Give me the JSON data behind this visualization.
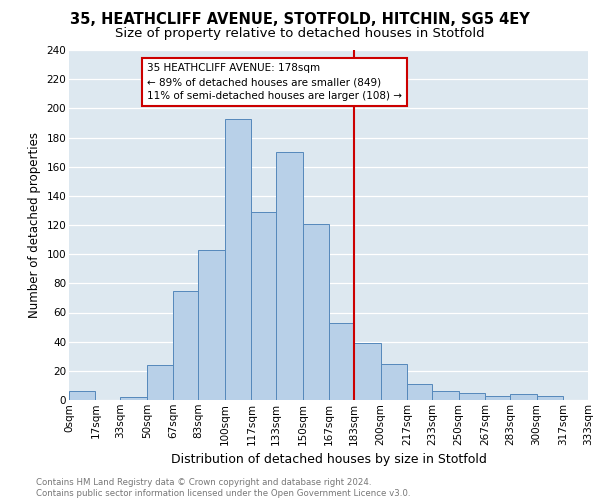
{
  "title1": "35, HEATHCLIFF AVENUE, STOTFOLD, HITCHIN, SG5 4EY",
  "title2": "Size of property relative to detached houses in Stotfold",
  "xlabel": "Distribution of detached houses by size in Stotfold",
  "ylabel": "Number of detached properties",
  "bin_labels": [
    "0sqm",
    "17sqm",
    "33sqm",
    "50sqm",
    "67sqm",
    "83sqm",
    "100sqm",
    "117sqm",
    "133sqm",
    "150sqm",
    "167sqm",
    "183sqm",
    "200sqm",
    "217sqm",
    "233sqm",
    "250sqm",
    "267sqm",
    "283sqm",
    "300sqm",
    "317sqm",
    "333sqm"
  ],
  "bin_edges": [
    0,
    17,
    33,
    50,
    67,
    83,
    100,
    117,
    133,
    150,
    167,
    183,
    200,
    217,
    233,
    250,
    267,
    283,
    300,
    317,
    333
  ],
  "bar_heights": [
    6,
    0,
    2,
    24,
    75,
    103,
    193,
    129,
    170,
    121,
    53,
    39,
    25,
    11,
    6,
    5,
    3,
    4,
    3,
    0
  ],
  "bar_color": "#b8d0e8",
  "bar_edge_color": "#5588bb",
  "property_line_x": 183,
  "property_line_color": "#cc0000",
  "annotation_title": "35 HEATHCLIFF AVENUE: 178sqm",
  "annotation_line1": "← 89% of detached houses are smaller (849)",
  "annotation_line2": "11% of semi-detached houses are larger (108) →",
  "annotation_box_edgecolor": "#cc0000",
  "ylim": [
    0,
    240
  ],
  "yticks": [
    0,
    20,
    40,
    60,
    80,
    100,
    120,
    140,
    160,
    180,
    200,
    220,
    240
  ],
  "footer1": "Contains HM Land Registry data © Crown copyright and database right 2024.",
  "footer2": "Contains public sector information licensed under the Open Government Licence v3.0.",
  "bg_color": "#dde8f0",
  "grid_color": "#ffffff",
  "title_fontsize": 10.5,
  "subtitle_fontsize": 9.5,
  "ylabel_fontsize": 8.5,
  "xlabel_fontsize": 9,
  "tick_fontsize": 7.5,
  "annotation_fontsize": 7.5,
  "footer_fontsize": 6.2
}
